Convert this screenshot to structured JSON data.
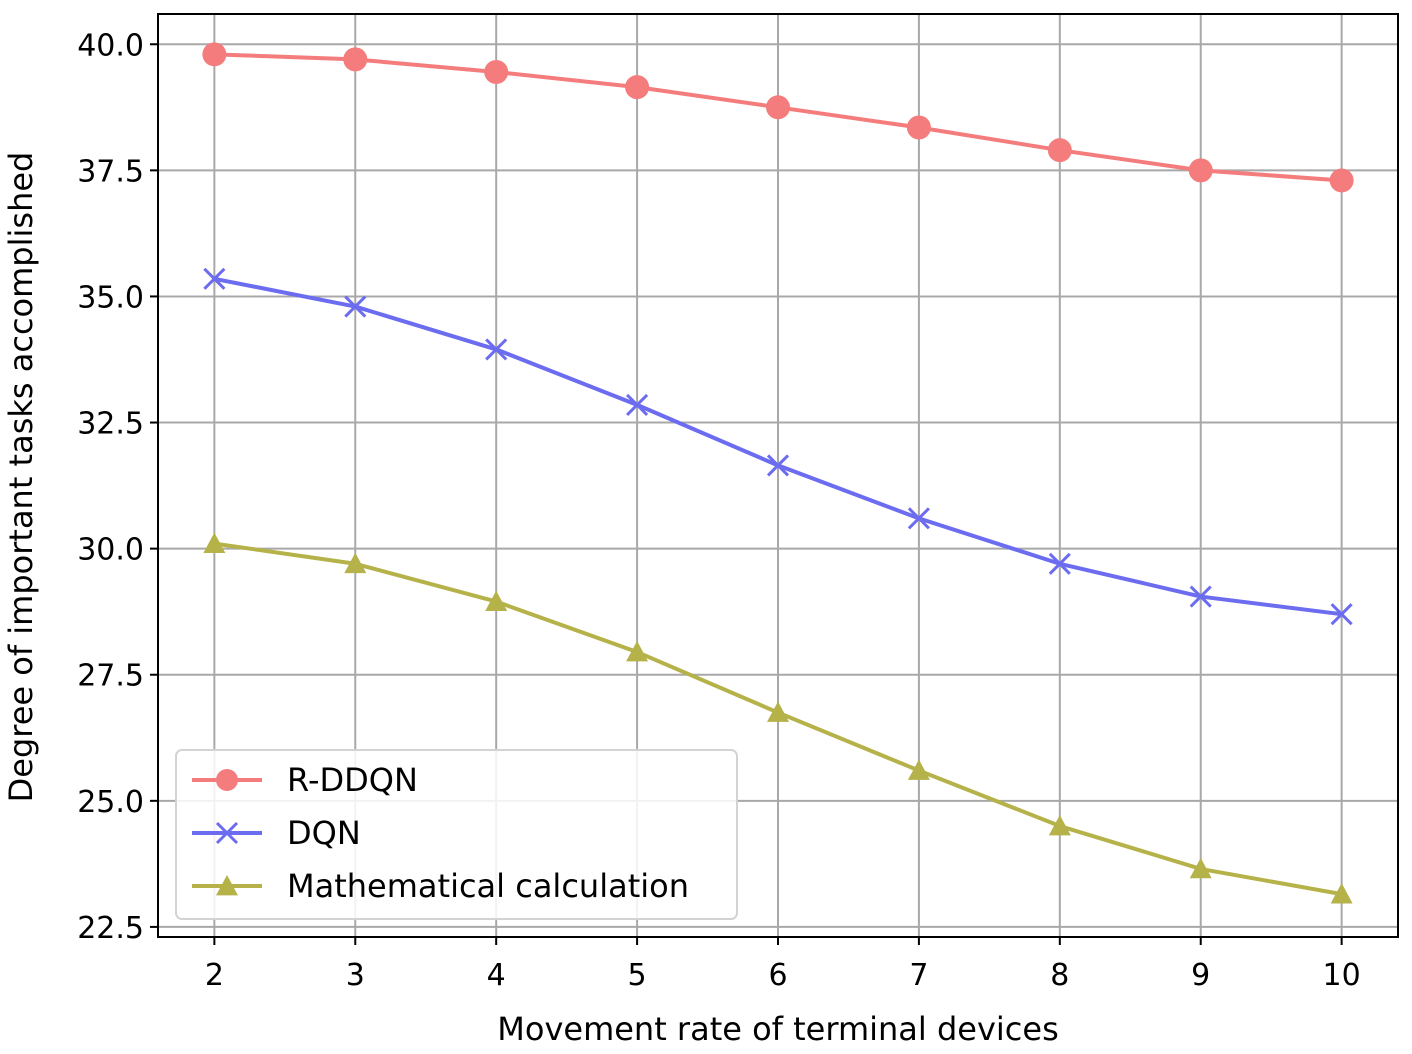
{
  "chart_data": {
    "type": "line",
    "title": "",
    "xlabel": "Movement rate of terminal devices",
    "ylabel": "Degree of important tasks accomplished",
    "x": [
      2,
      3,
      4,
      5,
      6,
      7,
      8,
      9,
      10
    ],
    "xticks": [
      "2",
      "3",
      "4",
      "5",
      "6",
      "7",
      "8",
      "9",
      "10"
    ],
    "yticks": [
      "22.5",
      "25.0",
      "27.5",
      "30.0",
      "32.5",
      "35.0",
      "37.5",
      "40.0"
    ],
    "xlim": [
      1.6,
      10.4
    ],
    "ylim": [
      22.3,
      40.6
    ],
    "grid": true,
    "legend_position": "lower-left",
    "series": [
      {
        "name": "R-DDQN",
        "color": "#f47c7c",
        "marker": "circle",
        "values": [
          39.8,
          39.7,
          39.45,
          39.15,
          38.75,
          38.35,
          37.9,
          37.5,
          37.3
        ]
      },
      {
        "name": "DQN",
        "color": "#6c6cf0",
        "marker": "x",
        "values": [
          35.35,
          34.8,
          33.95,
          32.85,
          31.65,
          30.6,
          29.7,
          29.05,
          28.7
        ]
      },
      {
        "name": "Mathematical calculation",
        "color": "#b5b24a",
        "marker": "triangle",
        "values": [
          30.1,
          29.7,
          28.95,
          27.95,
          26.75,
          25.6,
          24.5,
          23.65,
          23.15
        ]
      }
    ]
  }
}
